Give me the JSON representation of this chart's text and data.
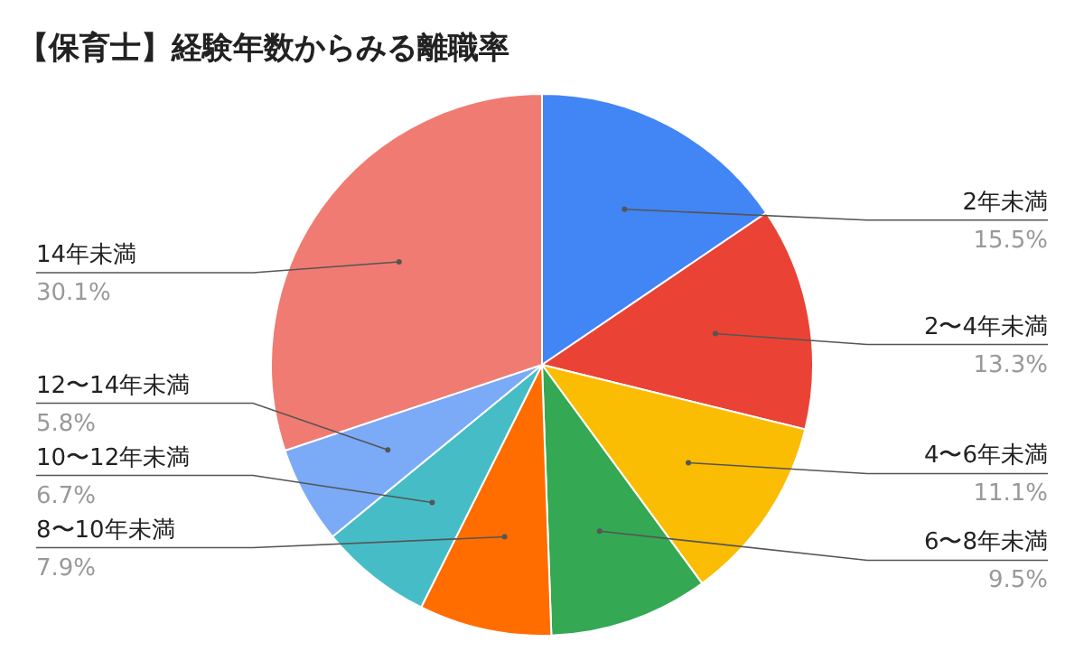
{
  "chart_data": {
    "type": "pie",
    "title": "【保育士】経験年数からみる離職率",
    "categories": [
      "2年未満",
      "2〜4年未満",
      "4〜6年未満",
      "6〜8年未満",
      "8〜10年未満",
      "10〜12年未満",
      "12〜14年未満",
      "14年未満"
    ],
    "values": [
      15.5,
      13.3,
      11.1,
      9.5,
      7.9,
      6.7,
      5.8,
      30.1
    ],
    "value_labels": [
      "15.5%",
      "13.3%",
      "11.1%",
      "9.5%",
      "7.9%",
      "6.7%",
      "5.8%",
      "30.1%"
    ],
    "colors": [
      "#4285f4",
      "#ea4335",
      "#fbbc04",
      "#34a853",
      "#ff6d01",
      "#46bdc6",
      "#7baaf7",
      "#f07b72"
    ]
  }
}
